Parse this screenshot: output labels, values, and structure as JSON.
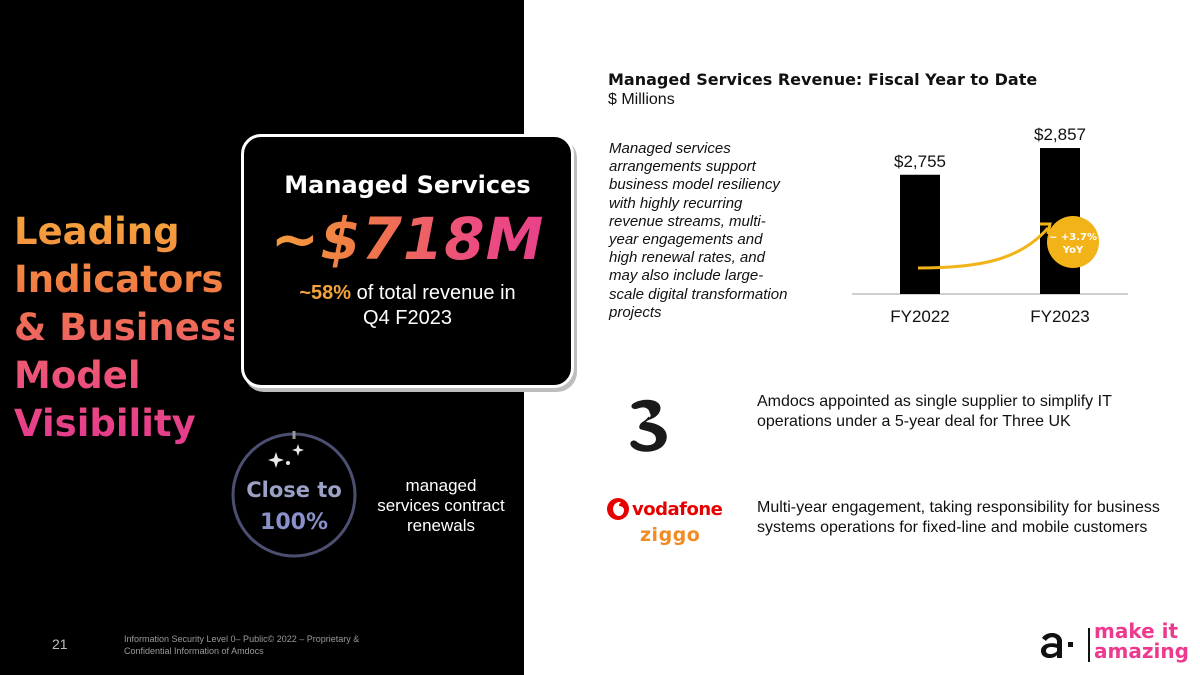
{
  "headline": {
    "lines": [
      "Leading",
      "Indicators",
      "& Business",
      "Model",
      "Visibility"
    ]
  },
  "managed_services_card": {
    "title": "Managed Services",
    "value": "~$718M",
    "pct": "~58%",
    "pct_text": " of total revenue in",
    "period": "Q4 F2023"
  },
  "renewals": {
    "close_to": "Close to",
    "pct": "100%",
    "lines": [
      "managed",
      "services contract",
      "renewals"
    ]
  },
  "footer": {
    "page_number": "21",
    "line1": "Information Security Level 0– Public© 2022 – Proprietary &",
    "line2": "Confidential Information of Amdocs"
  },
  "chart": {
    "title": "Managed Services Revenue: Fiscal Year to Date",
    "subtitle": "$ Millions",
    "description": "Managed services arrangements support business model resiliency with highly recurring revenue streams, multi-year engagements and high renewal rates, and may also include large-scale digital transformation projects"
  },
  "chart_data": {
    "type": "bar",
    "title": "Managed Services Revenue: Fiscal Year to Date",
    "ylabel": "$ Millions",
    "categories": [
      "FY2022",
      "FY2023"
    ],
    "values": [
      2755,
      2857
    ],
    "data_labels": [
      "$2,755",
      "$2,857"
    ],
    "annotation": {
      "line1": "~ +3.7%",
      "line2": "YoY"
    },
    "ylim": [
      2300,
      2880
    ],
    "bar_color": "#000000",
    "annotation_color": "#f2b319"
  },
  "news": [
    {
      "logo": "three-logo",
      "text": "Amdocs appointed as single supplier to simplify IT operations under a 5-year deal for Three UK"
    },
    {
      "logo": "vodafone-ziggo-logo",
      "brand1": "vodafone",
      "brand2": "ziggo",
      "text": "Multi-year engagement, taking responsibility for business systems operations for fixed-line and mobile customers"
    }
  ],
  "brand": {
    "line1": "make it",
    "line2": "amazing",
    "color": "#ec3b8f"
  }
}
